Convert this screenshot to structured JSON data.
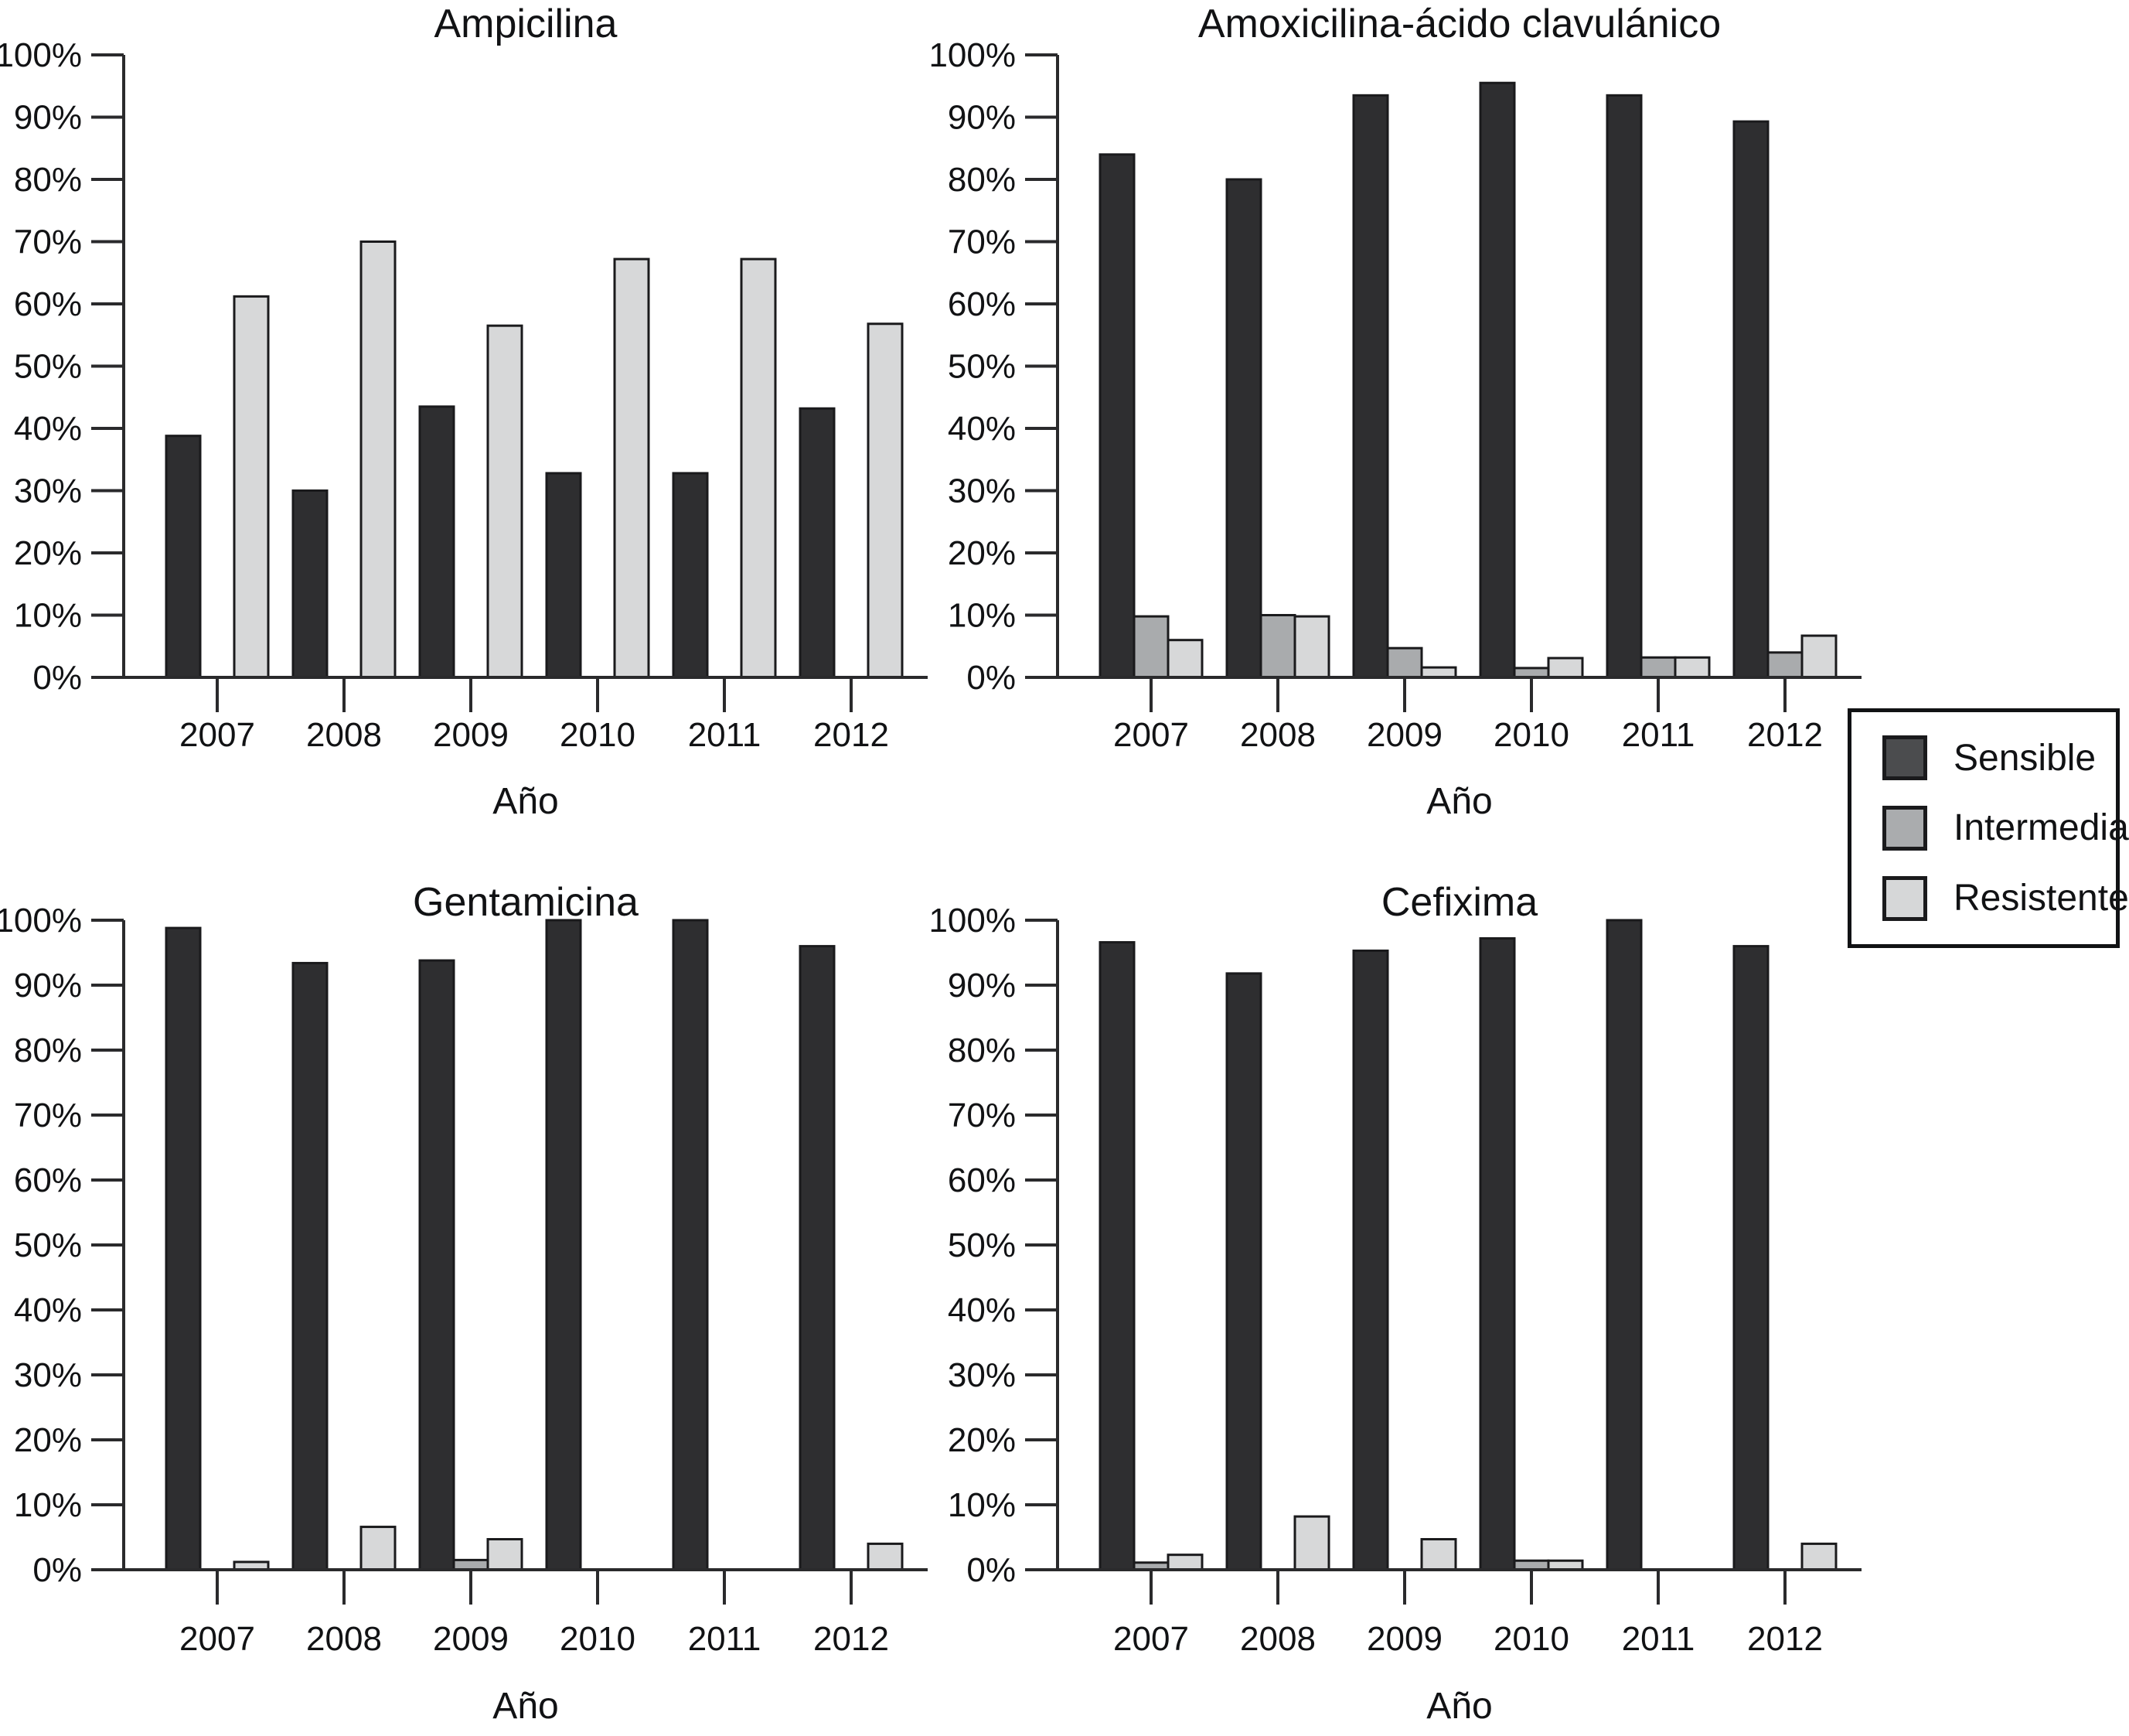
{
  "figure": {
    "background": "#ffffff",
    "text_color": "#111214",
    "axis_color": "#2a2a2c"
  },
  "colors": {
    "sensible_bar": "#2e2e30",
    "intermedia_bar": "#a9abad",
    "resistente_bar": "#d7d8d9",
    "bar_border": "#1a1a1c",
    "legend_sensible": "#4b4c4e",
    "legend_intermedia": "#aaacae",
    "legend_resistente": "#d6d7d8"
  },
  "legend": {
    "items": [
      {
        "label": "Sensible",
        "swatch_color": "#4b4c4e"
      },
      {
        "label": "Intermedia",
        "swatch_color": "#aaacae"
      },
      {
        "label": "Resistente",
        "swatch_color": "#d6d7d8"
      }
    ]
  },
  "chart_data": [
    {
      "type": "bar",
      "title": "Ampicilina",
      "xlabel": "Año",
      "ylabel": "",
      "ylim": [
        0,
        100
      ],
      "grid": false,
      "legend_position": "outside-right",
      "ytick_labels": [
        "0%",
        "10%",
        "20%",
        "30%",
        "40%",
        "50%",
        "60%",
        "70%",
        "80%",
        "90%",
        "100%"
      ],
      "categories": [
        "2007",
        "2008",
        "2009",
        "2010",
        "2011",
        "2012"
      ],
      "series": [
        {
          "name": "Sensible",
          "color": "#2e2e30",
          "values": [
            38.8,
            30.0,
            43.5,
            32.8,
            32.8,
            43.2
          ]
        },
        {
          "name": "Intermedia",
          "color": "#a9abad",
          "values": [
            0,
            0,
            0,
            0,
            0,
            0
          ]
        },
        {
          "name": "Resistente",
          "color": "#d7d8d9",
          "values": [
            61.2,
            70.0,
            56.5,
            67.2,
            67.2,
            56.8
          ]
        }
      ]
    },
    {
      "type": "bar",
      "title": "Amoxicilina-ácido clavulánico",
      "xlabel": "Año",
      "ylabel": "",
      "ylim": [
        0,
        100
      ],
      "grid": false,
      "legend_position": "outside-right",
      "ytick_labels": [
        "0%",
        "10%",
        "20%",
        "30%",
        "40%",
        "50%",
        "60%",
        "70%",
        "80%",
        "90%",
        "100%"
      ],
      "categories": [
        "2007",
        "2008",
        "2009",
        "2010",
        "2011",
        "2012"
      ],
      "series": [
        {
          "name": "Sensible",
          "color": "#2e2e30",
          "values": [
            84.0,
            80.0,
            93.5,
            95.5,
            93.5,
            89.3
          ]
        },
        {
          "name": "Intermedia",
          "color": "#a9abad",
          "values": [
            9.8,
            10.0,
            4.7,
            1.5,
            3.2,
            4.0
          ]
        },
        {
          "name": "Resistente",
          "color": "#d7d8d9",
          "values": [
            6.0,
            9.8,
            1.6,
            3.1,
            3.2,
            6.7
          ]
        }
      ]
    },
    {
      "type": "bar",
      "title": "Gentamicina",
      "xlabel": "Año",
      "ylabel": "",
      "ylim": [
        0,
        100
      ],
      "grid": false,
      "legend_position": "outside-right",
      "ytick_labels": [
        "0%",
        "10%",
        "20%",
        "30%",
        "40%",
        "50%",
        "60%",
        "70%",
        "80%",
        "90%",
        "100%"
      ],
      "categories": [
        "2007",
        "2008",
        "2009",
        "2010",
        "2011",
        "2012"
      ],
      "series": [
        {
          "name": "Sensible",
          "color": "#2e2e30",
          "values": [
            98.8,
            93.4,
            93.8,
            100.0,
            100.0,
            96.0
          ]
        },
        {
          "name": "Intermedia",
          "color": "#a9abad",
          "values": [
            0,
            0,
            1.5,
            0,
            0,
            0
          ]
        },
        {
          "name": "Resistente",
          "color": "#d7d8d9",
          "values": [
            1.2,
            6.6,
            4.7,
            0,
            0,
            4.0
          ]
        }
      ]
    },
    {
      "type": "bar",
      "title": "Cefixima",
      "xlabel": "Año",
      "ylabel": "",
      "ylim": [
        0,
        100
      ],
      "grid": false,
      "legend_position": "outside-right",
      "ytick_labels": [
        "0%",
        "10%",
        "20%",
        "30%",
        "40%",
        "50%",
        "60%",
        "70%",
        "80%",
        "90%",
        "100%"
      ],
      "categories": [
        "2007",
        "2008",
        "2009",
        "2010",
        "2011",
        "2012"
      ],
      "series": [
        {
          "name": "Sensible",
          "color": "#2e2e30",
          "values": [
            96.6,
            91.8,
            95.3,
            97.2,
            100.0,
            96.0
          ]
        },
        {
          "name": "Intermedia",
          "color": "#a9abad",
          "values": [
            1.1,
            0,
            0,
            1.4,
            0,
            0
          ]
        },
        {
          "name": "Resistente",
          "color": "#d7d8d9",
          "values": [
            2.3,
            8.2,
            4.7,
            1.4,
            0,
            4.0
          ]
        }
      ]
    }
  ]
}
